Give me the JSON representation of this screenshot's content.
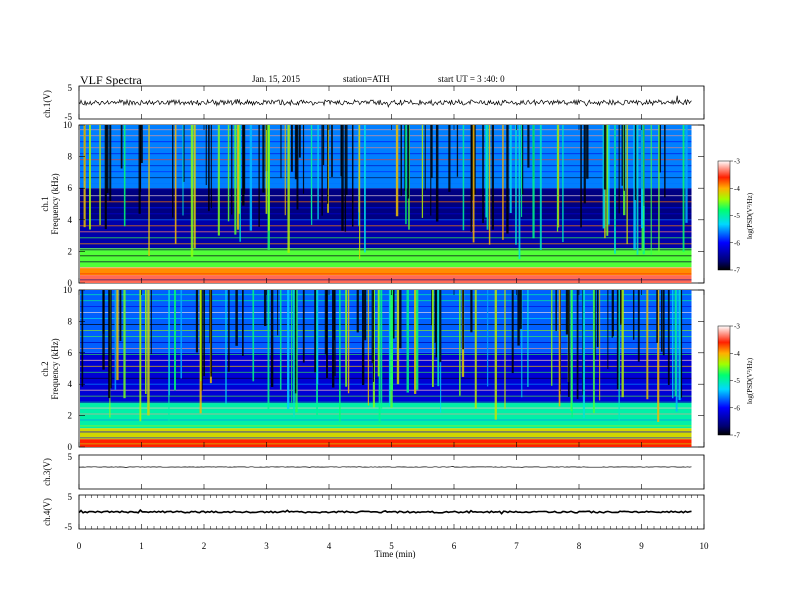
{
  "header": {
    "title": "VLF Spectra",
    "date": "Jan. 15, 2015",
    "station": "station=ATH",
    "start": "start UT = 3 :40: 0"
  },
  "chart_data": [
    {
      "type": "line",
      "panel": "ch1-waveform",
      "ylabel": "ch.1(V)",
      "ylim": [
        -5,
        5
      ],
      "ticks": [
        "5",
        "-5"
      ],
      "x": [
        0,
        9.8
      ],
      "description_level_mean_V": 0,
      "noise_amplitude_V": 0.8
    },
    {
      "type": "heatmap",
      "panel": "ch1-spectrogram",
      "ylabel": "Frequency (kHz)",
      "channel_label": "ch.1",
      "ylim": [
        0,
        10
      ],
      "yticks": [
        "10",
        "8",
        "6",
        "4",
        "2",
        "0"
      ],
      "xlim": [
        0,
        10
      ],
      "data_end_min": 9.8,
      "colorbar": {
        "label": "log(PSD(V²/Hz)",
        "range": [
          -7,
          -3
        ],
        "ticks": [
          "-3",
          "-4",
          "-5",
          "-6",
          "-7"
        ]
      },
      "bands_kHz_to_log_psd": [
        {
          "from": 0,
          "to": 0.5,
          "value": -3.4
        },
        {
          "from": 0.5,
          "to": 1.0,
          "value": -3.9
        },
        {
          "from": 1.0,
          "to": 2.2,
          "value": -4.6
        },
        {
          "from": 2.2,
          "to": 4.0,
          "value": -6.4
        },
        {
          "from": 4.0,
          "to": 6.0,
          "value": -6.6
        },
        {
          "from": 6.0,
          "to": 10.0,
          "value": -5.6
        }
      ]
    },
    {
      "type": "heatmap",
      "panel": "ch2-spectrogram",
      "ylabel": "Frequency (kHz)",
      "channel_label": "ch.2",
      "ylim": [
        0,
        10
      ],
      "yticks": [
        "10",
        "8",
        "6",
        "4",
        "2",
        "0"
      ],
      "xlim": [
        0,
        10
      ],
      "data_end_min": 9.8,
      "colorbar": {
        "label": "log(PSD(V²/Hz)",
        "range": [
          -7,
          -3
        ],
        "ticks": [
          "-3",
          "-4",
          "-5",
          "-6",
          "-7"
        ]
      },
      "bands_kHz_to_log_psd": [
        {
          "from": 0,
          "to": 0.5,
          "value": -3.6
        },
        {
          "from": 0.5,
          "to": 1.2,
          "value": -4.2
        },
        {
          "from": 1.2,
          "to": 2.8,
          "value": -5.0
        },
        {
          "from": 2.8,
          "to": 6.0,
          "value": -6.2
        },
        {
          "from": 6.0,
          "to": 10.0,
          "value": -5.7
        }
      ]
    },
    {
      "type": "line",
      "panel": "ch3-waveform",
      "ylabel": "ch.3(V)",
      "ylim": [
        -5,
        5
      ],
      "ticks": [
        "5"
      ],
      "x": [
        0,
        9.8
      ],
      "level_V": 0,
      "noise_amplitude_V": 0.1
    },
    {
      "type": "line",
      "panel": "ch4-waveform",
      "ylabel": "ch.4(V)",
      "ylim": [
        -5,
        5
      ],
      "ticks": [
        "5",
        "-5"
      ],
      "x": [
        0,
        9.8
      ],
      "level_V": 0,
      "noise_amplitude_V": 0.25
    }
  ],
  "xaxis": {
    "label": "Time (min)",
    "ticks": [
      "0",
      "1",
      "2",
      "3",
      "4",
      "5",
      "6",
      "7",
      "8",
      "9",
      "10"
    ]
  }
}
